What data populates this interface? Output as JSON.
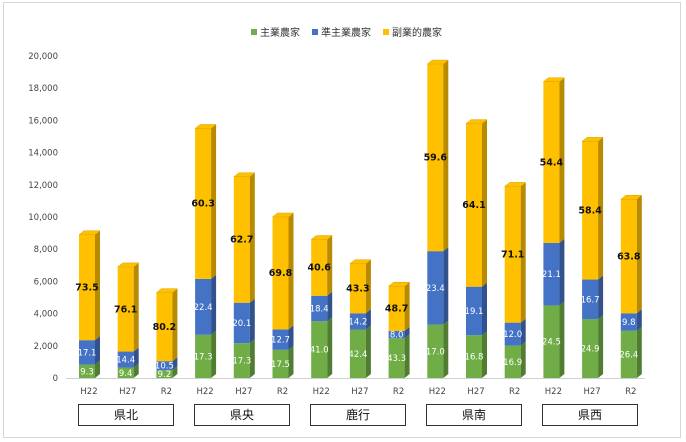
{
  "chart_data": {
    "type": "bar",
    "stacked": true,
    "legend_position": "top-center",
    "ylim": [
      0,
      20000
    ],
    "y_ticks": [
      "0",
      "2,000",
      "4,000",
      "6,000",
      "8,000",
      "10,000",
      "12,000",
      "14,000",
      "16,000",
      "18,000",
      "20,000"
    ],
    "grid": false,
    "legend": [
      {
        "name": "主業農家",
        "color": "#70ad47"
      },
      {
        "name": "準主業農家",
        "color": "#4472c4"
      },
      {
        "name": "副業的農家",
        "color": "#ffc000"
      }
    ],
    "groups": [
      {
        "name": "県北",
        "bars": [
          {
            "label": "H22",
            "total": 8900,
            "percents": [
              "9.3",
              "17.1",
              "73.5"
            ]
          },
          {
            "label": "H27",
            "total": 6900,
            "percents": [
              "9.4",
              "14.4",
              "76.1"
            ]
          },
          {
            "label": "R2",
            "total": 5300,
            "percents": [
              "9.2",
              "10.5",
              "80.2"
            ]
          }
        ]
      },
      {
        "name": "県央",
        "bars": [
          {
            "label": "H22",
            "total": 15500,
            "percents": [
              "17.3",
              "22.4",
              "60.3"
            ]
          },
          {
            "label": "H27",
            "total": 12500,
            "percents": [
              "17.3",
              "20.1",
              "62.7"
            ]
          },
          {
            "label": "R2",
            "total": 10000,
            "percents": [
              "17.5",
              "12.7",
              "69.8"
            ]
          }
        ]
      },
      {
        "name": "鹿行",
        "bars": [
          {
            "label": "H22",
            "total": 8600,
            "percents": [
              "41.0",
              "18.4",
              "40.6"
            ]
          },
          {
            "label": "H27",
            "total": 7100,
            "percents": [
              "42.4",
              "14.2",
              "43.3"
            ]
          },
          {
            "label": "R2",
            "total": 5700,
            "percents": [
              "43.3",
              "8.0",
              "48.7"
            ]
          }
        ]
      },
      {
        "name": "県南",
        "bars": [
          {
            "label": "H22",
            "total": 19500,
            "percents": [
              "17.0",
              "23.4",
              "59.6"
            ]
          },
          {
            "label": "H27",
            "total": 15800,
            "percents": [
              "16.8",
              "19.1",
              "64.1"
            ]
          },
          {
            "label": "R2",
            "total": 11900,
            "percents": [
              "16.9",
              "12.0",
              "71.1"
            ]
          }
        ]
      },
      {
        "name": "県西",
        "bars": [
          {
            "label": "H22",
            "total": 18400,
            "percents": [
              "24.5",
              "21.1",
              "54.4"
            ]
          },
          {
            "label": "H27",
            "total": 14700,
            "percents": [
              "24.9",
              "16.7",
              "58.4"
            ]
          },
          {
            "label": "R2",
            "total": 11100,
            "percents": [
              "26.4",
              "9.8",
              "63.8"
            ]
          }
        ]
      }
    ]
  }
}
